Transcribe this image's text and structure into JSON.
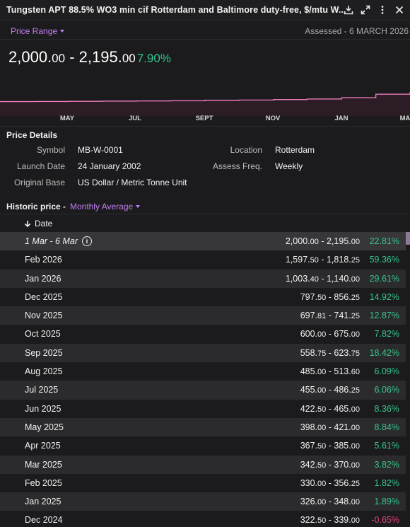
{
  "window": {
    "title": "Tungsten APT 88.5% WO3 min cif Rotterdam and Baltimore duty-free, $/mtu W...",
    "icons": [
      "download-icon",
      "expand-icon",
      "more-icon",
      "close-icon"
    ]
  },
  "range": {
    "label": "Price Range",
    "assessed": "Assessed - 6 MARCH 2026"
  },
  "headline": {
    "low_int": "2,000.",
    "low_dec": "00",
    "sep": " - ",
    "high_int": "2,195.",
    "high_dec": "00",
    "change": "7.90%"
  },
  "chart_data": {
    "type": "line",
    "title": "",
    "xlabel": "",
    "ylabel": "",
    "x_ticks": [
      "MAY",
      "JUL",
      "SEPT",
      "NOV",
      "JAN",
      "MA"
    ],
    "series": [
      {
        "x": [
          "Mar 2025",
          "Apr 2025",
          "May 2025",
          "Jun 2025",
          "Jul 2025",
          "Aug 2025",
          "Sep 2025",
          "Oct 2025",
          "Nov 2025",
          "Dec 2025",
          "Jan 2026",
          "Feb 2026",
          "Mar 2026"
        ],
        "values": [
          356,
          376,
          410,
          444,
          471,
          499,
          591,
          638,
          720,
          827,
          1072,
          1708,
          2098
        ]
      }
    ],
    "grid": false,
    "legend": "none",
    "line_color": "#e87ab8"
  },
  "details": {
    "title": "Price Details",
    "symbol_label": "Symbol",
    "symbol": "MB-W-0001",
    "launch_label": "Launch Date",
    "launch": "24 January 2002",
    "base_label": "Original Base",
    "base": "US Dollar / Metric Tonne Unit",
    "location_label": "Location",
    "location": "Rotterdam",
    "freq_label": "Assess Freq.",
    "freq": "Weekly"
  },
  "history": {
    "title": "Historic price -",
    "mode": "Monthly Average",
    "col_date": "Date",
    "rows": [
      {
        "date": "1 Mar - 6 Mar",
        "low_i": "2,000.",
        "low_d": "00",
        "high_i": "2,195.",
        "high_d": "00",
        "pct": "22.81%",
        "dir": "up",
        "current": true
      },
      {
        "date": "Feb 2026",
        "low_i": "1,597.",
        "low_d": "50",
        "high_i": "1,818.",
        "high_d": "25",
        "pct": "59.36%",
        "dir": "up"
      },
      {
        "date": "Jan 2026",
        "low_i": "1,003.",
        "low_d": "40",
        "high_i": "1,140.",
        "high_d": "00",
        "pct": "29.61%",
        "dir": "up"
      },
      {
        "date": "Dec 2025",
        "low_i": "797.",
        "low_d": "50",
        "high_i": "856.",
        "high_d": "25",
        "pct": "14.92%",
        "dir": "up"
      },
      {
        "date": "Nov 2025",
        "low_i": "697.",
        "low_d": "81",
        "high_i": "741.",
        "high_d": "25",
        "pct": "12.87%",
        "dir": "up"
      },
      {
        "date": "Oct 2025",
        "low_i": "600.",
        "low_d": "00",
        "high_i": "675.",
        "high_d": "00",
        "pct": "7.82%",
        "dir": "up"
      },
      {
        "date": "Sep 2025",
        "low_i": "558.",
        "low_d": "75",
        "high_i": "623.",
        "high_d": "75",
        "pct": "18.42%",
        "dir": "up"
      },
      {
        "date": "Aug 2025",
        "low_i": "485.",
        "low_d": "00",
        "high_i": "513.",
        "high_d": "60",
        "pct": "6.09%",
        "dir": "up"
      },
      {
        "date": "Jul 2025",
        "low_i": "455.",
        "low_d": "00",
        "high_i": "486.",
        "high_d": "25",
        "pct": "6.06%",
        "dir": "up"
      },
      {
        "date": "Jun 2025",
        "low_i": "422.",
        "low_d": "50",
        "high_i": "465.",
        "high_d": "00",
        "pct": "8.36%",
        "dir": "up"
      },
      {
        "date": "May 2025",
        "low_i": "398.",
        "low_d": "00",
        "high_i": "421.",
        "high_d": "00",
        "pct": "8.84%",
        "dir": "up"
      },
      {
        "date": "Apr 2025",
        "low_i": "367.",
        "low_d": "50",
        "high_i": "385.",
        "high_d": "00",
        "pct": "5.61%",
        "dir": "up"
      },
      {
        "date": "Mar 2025",
        "low_i": "342.",
        "low_d": "50",
        "high_i": "370.",
        "high_d": "00",
        "pct": "3.82%",
        "dir": "up"
      },
      {
        "date": "Feb 2025",
        "low_i": "330.",
        "low_d": "00",
        "high_i": "356.",
        "high_d": "25",
        "pct": "1.82%",
        "dir": "up"
      },
      {
        "date": "Jan 2025",
        "low_i": "326.",
        "low_d": "00",
        "high_i": "348.",
        "high_d": "00",
        "pct": "1.89%",
        "dir": "up"
      },
      {
        "date": "Dec 2024",
        "low_i": "322.",
        "low_d": "50",
        "high_i": "339.",
        "high_d": "00",
        "pct": "-0.65%",
        "dir": "down"
      }
    ]
  }
}
